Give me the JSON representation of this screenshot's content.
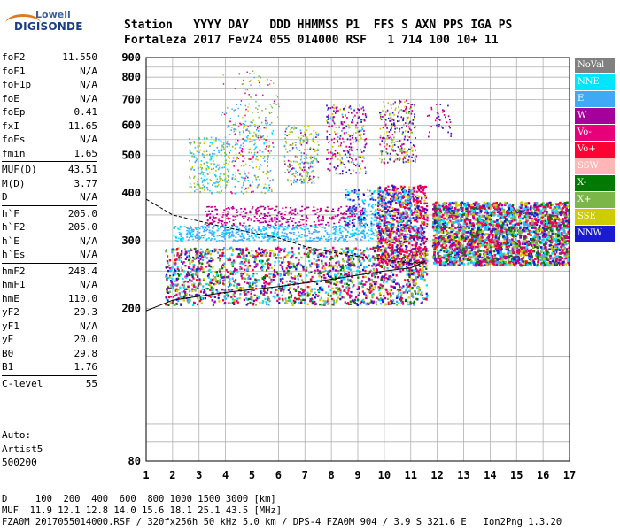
{
  "logo": {
    "line1": "Lowell",
    "line2": "DIGISONDE"
  },
  "header": {
    "labels": "Station   YYYY DAY   DDD HHMMSS P1  FFS S AXN PPS IGA PS",
    "values": "Fortaleza 2017 Fev24 055 014000 RSF   1 714 100 10+ 11"
  },
  "params": [
    {
      "key": "foF2",
      "value": "11.550"
    },
    {
      "key": "foF1",
      "value": "N/A"
    },
    {
      "key": "foF1p",
      "value": "N/A"
    },
    {
      "key": "foE",
      "value": "N/A"
    },
    {
      "key": "foEp",
      "value": "0.41"
    },
    {
      "key": "fxI",
      "value": "11.65"
    },
    {
      "key": "foEs",
      "value": "N/A"
    },
    {
      "key": "fmin",
      "value": "1.65"
    },
    {
      "key": "MUF(D)",
      "value": "43.51"
    },
    {
      "key": "M(D)",
      "value": "3.77"
    },
    {
      "key": "D",
      "value": "N/A"
    },
    {
      "key": "h`F",
      "value": "205.0"
    },
    {
      "key": "h`F2",
      "value": "205.0"
    },
    {
      "key": "h`E",
      "value": "N/A"
    },
    {
      "key": "h`Es",
      "value": "N/A"
    },
    {
      "key": "hmF2",
      "value": "248.4"
    },
    {
      "key": "hmF1",
      "value": "N/A"
    },
    {
      "key": "hmE",
      "value": "110.0"
    },
    {
      "key": "yF2",
      "value": "29.3"
    },
    {
      "key": "yF1",
      "value": "N/A"
    },
    {
      "key": "yE",
      "value": "20.0"
    },
    {
      "key": "B0",
      "value": "29.8"
    },
    {
      "key": "B1",
      "value": "1.76"
    },
    {
      "key": "C-level",
      "value": "55"
    }
  ],
  "auto": {
    "line1": "Auto:",
    "line2": "Artist5",
    "line3": "500200"
  },
  "legend": [
    {
      "label": "NoVal",
      "color": "#808080"
    },
    {
      "label": "NNE",
      "color": "#00e5ff"
    },
    {
      "label": "E",
      "color": "#3fa9f5"
    },
    {
      "label": "W",
      "color": "#a5009c"
    },
    {
      "label": "Vo-",
      "color": "#e8007a"
    },
    {
      "label": "Vo+",
      "color": "#ff0033"
    },
    {
      "label": "SSW",
      "color": "#ffb6b6"
    },
    {
      "label": "X-",
      "color": "#007a00"
    },
    {
      "label": "X+",
      "color": "#7ab648"
    },
    {
      "label": "SSE",
      "color": "#cccc00"
    },
    {
      "label": "NNW",
      "color": "#1a1ad0"
    }
  ],
  "footer": {
    "d_line": "D     100  200  400  600  800 1000 1500 3000 [km]",
    "muf_line": "MUF  11.9 12.1 12.8 14.0 15.6 18.1 25.1 43.5 [MHz]",
    "file_line": "FZA0M_2017055014000.RSF / 320fx256h 50 kHz 5.0 km / DPS-4 FZA0M 904 / 3.9 S 321.6 E   Ion2Png 1.3.20"
  },
  "chart_data": {
    "type": "scatter",
    "xlim": [
      1,
      17
    ],
    "ylim": [
      80,
      900
    ],
    "yscale": "log",
    "xticks": [
      1,
      2,
      3,
      4,
      5,
      6,
      7,
      8,
      9,
      10,
      11,
      12,
      13,
      14,
      15,
      16,
      17
    ],
    "yticks": [
      80,
      200,
      300,
      400,
      500,
      600,
      700,
      800,
      900
    ],
    "grid": true,
    "legend_position": "right",
    "series": [
      {
        "name": "Vo-",
        "color": "#e8007a",
        "region": [
          [
            1.7,
            230
          ],
          [
            3,
            222
          ],
          [
            5,
            225
          ],
          [
            7,
            235
          ],
          [
            9,
            248
          ],
          [
            11,
            262
          ],
          [
            12,
            300
          ],
          [
            13.5,
            300
          ],
          [
            15,
            295
          ],
          [
            17,
            290
          ]
        ]
      },
      {
        "name": "E",
        "color": "#3fa9f5",
        "region": [
          [
            2,
            310
          ],
          [
            4,
            310
          ],
          [
            6,
            315
          ],
          [
            8,
            320
          ],
          [
            9.5,
            380
          ],
          [
            11,
            400
          ],
          [
            13,
            380
          ],
          [
            15,
            360
          ],
          [
            17,
            340
          ]
        ]
      },
      {
        "name": "NNW",
        "color": "#1a1ad0",
        "region": [
          [
            8,
            600
          ],
          [
            9,
            650
          ],
          [
            10,
            620
          ],
          [
            11,
            640
          ],
          [
            12,
            330
          ],
          [
            14,
            340
          ],
          [
            16,
            330
          ],
          [
            17,
            310
          ]
        ]
      },
      {
        "name": "SSE",
        "color": "#cccc00",
        "region": [
          [
            4,
            560
          ],
          [
            5,
            590
          ],
          [
            6,
            520
          ],
          [
            8,
            560
          ],
          [
            10,
            600
          ],
          [
            12,
            280
          ],
          [
            14,
            290
          ],
          [
            16,
            300
          ]
        ]
      },
      {
        "name": "W",
        "color": "#a5009c",
        "region": [
          [
            3.5,
            360
          ],
          [
            5,
            360
          ],
          [
            9,
            330
          ],
          [
            11,
            620
          ],
          [
            14,
            320
          ]
        ]
      },
      {
        "name": "X+",
        "color": "#7ab648",
        "region": [
          [
            3,
            420
          ],
          [
            7,
            450
          ],
          [
            10,
            600
          ],
          [
            13,
            290
          ]
        ]
      }
    ],
    "traces": [
      {
        "name": "virtual-height trace",
        "points": [
          [
            1,
            197
          ],
          [
            2,
            210
          ],
          [
            4,
            220
          ],
          [
            6,
            228
          ],
          [
            8,
            238
          ],
          [
            10,
            250
          ],
          [
            11,
            255
          ],
          [
            11.55,
            265
          ]
        ]
      },
      {
        "name": "profile curve",
        "points": [
          [
            1,
            385
          ],
          [
            2,
            350
          ],
          [
            4,
            325
          ],
          [
            6,
            305
          ],
          [
            7,
            290
          ],
          [
            8,
            280
          ],
          [
            9,
            273
          ],
          [
            10,
            268
          ],
          [
            11,
            262
          ],
          [
            11.55,
            265
          ]
        ]
      }
    ]
  }
}
